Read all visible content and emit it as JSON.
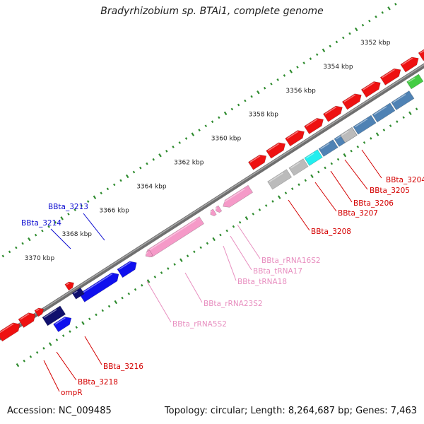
{
  "title": "Bradyrhizobium sp. BTAi1, complete genome",
  "footer": {
    "accession": "Accession: NC_009485",
    "summary": "Topology: circular; Length: 8,264,687 bp; Genes: 7,463"
  },
  "colors": {
    "backbone": "#7a7a7a",
    "tick": "#2e8b2e",
    "red": "#ee1111",
    "blue": "#1010ee",
    "navy": "#10106e",
    "steel": "#4f82b4",
    "cyan": "#22eeee",
    "gray": "#bbbbbb",
    "green": "#44cc44",
    "pink": "#f59ac8",
    "label_blue": "#0a0ad0",
    "label_red": "#d40000",
    "label_pink": "#e88fc0"
  },
  "scale": {
    "unit": "kbp",
    "ticks": [
      {
        "kbp": 3352,
        "label": "3352 kbp"
      },
      {
        "kbp": 3354,
        "label": "3354 kbp"
      },
      {
        "kbp": 3356,
        "label": "3356 kbp"
      },
      {
        "kbp": 3358,
        "label": "3358 kbp"
      },
      {
        "kbp": 3360,
        "label": "3360 kbp"
      },
      {
        "kbp": 3362,
        "label": "3362 kbp"
      },
      {
        "kbp": 3364,
        "label": "3364 kbp"
      },
      {
        "kbp": 3366,
        "label": "3366 kbp"
      },
      {
        "kbp": 3368,
        "label": "3368 kbp"
      },
      {
        "kbp": 3370,
        "label": "3370 kbp"
      }
    ]
  },
  "gene_labels": [
    {
      "name": "BBta_3213",
      "color_key": "label_blue"
    },
    {
      "name": "BBta_3214",
      "color_key": "label_blue"
    },
    {
      "name": "BBta_3204",
      "color_key": "label_red"
    },
    {
      "name": "BBta_3205",
      "color_key": "label_red"
    },
    {
      "name": "BBta_3206",
      "color_key": "label_red"
    },
    {
      "name": "BBta_3207",
      "color_key": "label_red"
    },
    {
      "name": "BBta_3208",
      "color_key": "label_red"
    },
    {
      "name": "BBta_rRNA16S2",
      "color_key": "label_pink"
    },
    {
      "name": "BBta_tRNA17",
      "color_key": "label_pink"
    },
    {
      "name": "BBta_tRNA18",
      "color_key": "label_pink"
    },
    {
      "name": "BBta_rRNA23S2",
      "color_key": "label_pink"
    },
    {
      "name": "BBta_rRNA5S2",
      "color_key": "label_pink"
    },
    {
      "name": "BBta_3216",
      "color_key": "label_red"
    },
    {
      "name": "BBta_3218",
      "color_key": "label_red"
    },
    {
      "name": "ompR",
      "color_key": "label_red"
    }
  ]
}
